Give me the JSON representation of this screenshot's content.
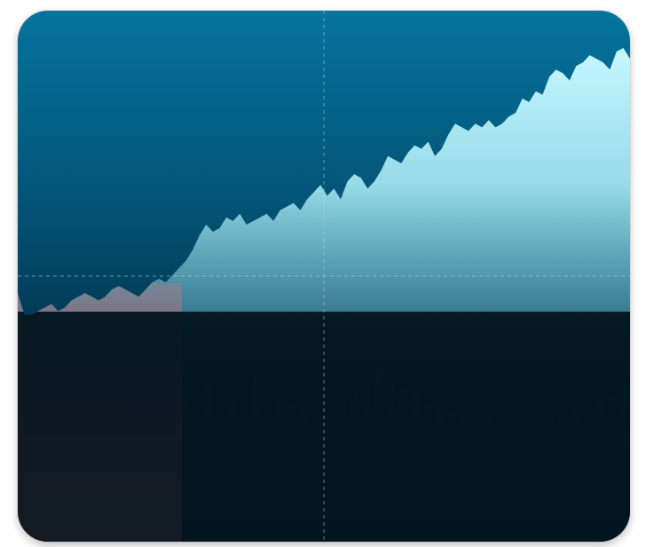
{
  "colors": {
    "background_top": "#05739c",
    "background_bottom": "#021a29",
    "gain_color": "#c6f7ff",
    "loss_color": "#ff6b6b",
    "dark_fill": "#02141f",
    "crosshair": "#b9d3de"
  },
  "chart_data": {
    "type": "area",
    "title": "",
    "xlabel": "",
    "ylabel": "",
    "grid": false,
    "legend": "none",
    "crosshair": {
      "x": 0.5,
      "y": 0.5
    },
    "ylim": [
      0,
      1
    ],
    "series": [
      {
        "values": [
          0.32,
          0.26,
          0.26,
          0.27,
          0.28,
          0.29,
          0.27,
          0.28,
          0.3,
          0.31,
          0.32,
          0.31,
          0.3,
          0.31,
          0.33,
          0.34,
          0.33,
          0.32,
          0.31,
          0.33,
          0.35,
          0.36,
          0.35,
          0.37,
          0.39,
          0.41,
          0.44,
          0.48,
          0.51,
          0.49,
          0.5,
          0.53,
          0.52,
          0.54,
          0.51,
          0.52,
          0.53,
          0.54,
          0.52,
          0.55,
          0.56,
          0.57,
          0.55,
          0.58,
          0.6,
          0.62,
          0.59,
          0.61,
          0.58,
          0.63,
          0.65,
          0.64,
          0.61,
          0.63,
          0.66,
          0.7,
          0.69,
          0.68,
          0.71,
          0.73,
          0.72,
          0.74,
          0.7,
          0.72,
          0.76,
          0.79,
          0.78,
          0.77,
          0.79,
          0.78,
          0.8,
          0.78,
          0.79,
          0.81,
          0.82,
          0.86,
          0.85,
          0.88,
          0.87,
          0.92,
          0.94,
          0.93,
          0.91,
          0.95,
          0.96,
          0.98,
          0.97,
          0.96,
          0.94,
          0.99,
          1.0,
          0.97
        ]
      }
    ],
    "volume": [
      0.05,
      0.06,
      0.07,
      0.08,
      0.07,
      0.05,
      0.06,
      0.08,
      0.09,
      0.1,
      0.13,
      0.12,
      0.14,
      0.16,
      0.18,
      0.2,
      0.17,
      0.19,
      0.22,
      0.25,
      0.21,
      0.15,
      0.12,
      0.11,
      0.1,
      0.09,
      0.12,
      0.18,
      0.23,
      0.27,
      0.24,
      0.2,
      0.16,
      0.12,
      0.1,
      0.08,
      0.06,
      0.05,
      0.04,
      0.03,
      0.04,
      0.05,
      0.03,
      0.04,
      0.06,
      0.08,
      0.1,
      0.12,
      0.16,
      0.19
    ]
  }
}
